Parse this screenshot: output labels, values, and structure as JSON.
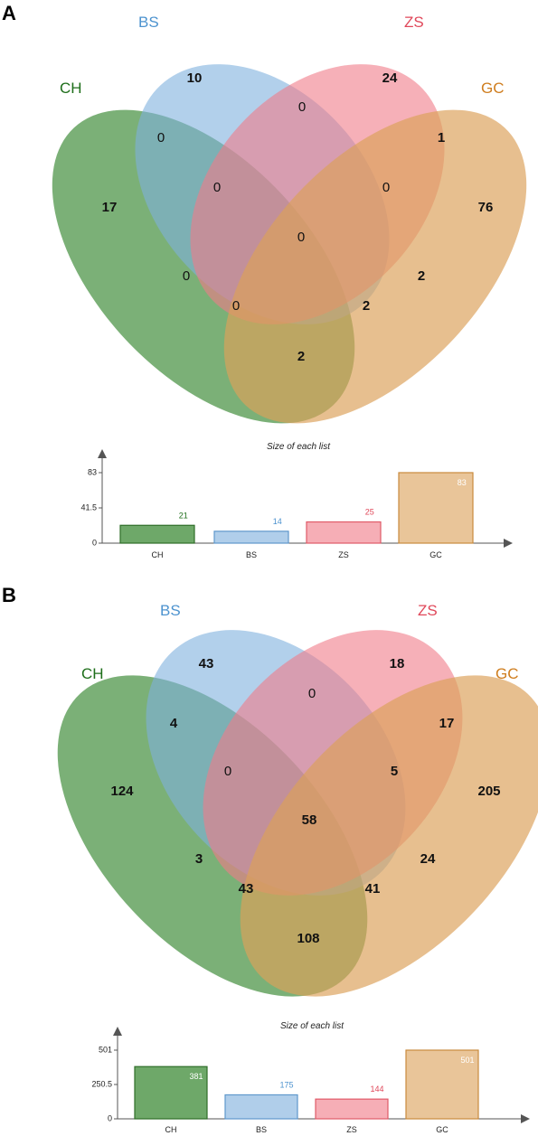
{
  "colors": {
    "CH": "#3d8b37",
    "BS": "#7fb0dd",
    "ZS": "#f07c89",
    "GC": "#dca15a",
    "CH_text": "#1e6e1a",
    "BS_text": "#4d93cf",
    "ZS_text": "#e0485a",
    "GC_text": "#cf7d1e"
  },
  "panels": [
    {
      "letter": "A",
      "sets": {
        "CH": "CH",
        "BS": "BS",
        "ZS": "ZS",
        "GC": "GC"
      },
      "regions": {
        "BS_only": "10",
        "ZS_only": "24",
        "CH_only": "17",
        "GC_only": "76",
        "BS_ZS": "0",
        "CH_BS": "0",
        "ZS_GC": "1",
        "CH_BS_ZS": "0",
        "BS_ZS_GC": "0",
        "CH_BS_ZS_GC": "0",
        "CH_ZS": "0",
        "BS_GC": "2",
        "CH_ZS_GC": "0",
        "CH_BS_GC": "2",
        "CH_GC": "2"
      },
      "bar_title": "Size of each list",
      "chart_data": {
        "type": "bar",
        "title": "Size of each list",
        "categories": [
          "CH",
          "BS",
          "ZS",
          "GC"
        ],
        "values": [
          21,
          14,
          25,
          83
        ],
        "value_labels": [
          "21",
          "14",
          "25",
          "83"
        ],
        "yticks": [
          "0",
          "41.5",
          "83"
        ],
        "ylim": [
          0,
          83
        ]
      }
    },
    {
      "letter": "B",
      "sets": {
        "CH": "CH",
        "BS": "BS",
        "ZS": "ZS",
        "GC": "GC"
      },
      "regions": {
        "BS_only": "43",
        "ZS_only": "18",
        "CH_only": "124",
        "GC_only": "205",
        "BS_ZS": "0",
        "CH_BS": "4",
        "ZS_GC": "17",
        "CH_BS_ZS": "0",
        "BS_ZS_GC": "5",
        "CH_BS_ZS_GC": "58",
        "CH_ZS": "3",
        "BS_GC": "24",
        "CH_ZS_GC": "43",
        "CH_BS_GC": "41",
        "CH_GC": "108"
      },
      "bar_title": "Size of each list",
      "chart_data": {
        "type": "bar",
        "title": "Size of each list",
        "categories": [
          "CH",
          "BS",
          "ZS",
          "GC"
        ],
        "values": [
          381,
          175,
          144,
          501
        ],
        "value_labels": [
          "381",
          "175",
          "144",
          "501"
        ],
        "yticks": [
          "0",
          "250.5",
          "501"
        ],
        "ylim": [
          0,
          501
        ]
      }
    }
  ]
}
